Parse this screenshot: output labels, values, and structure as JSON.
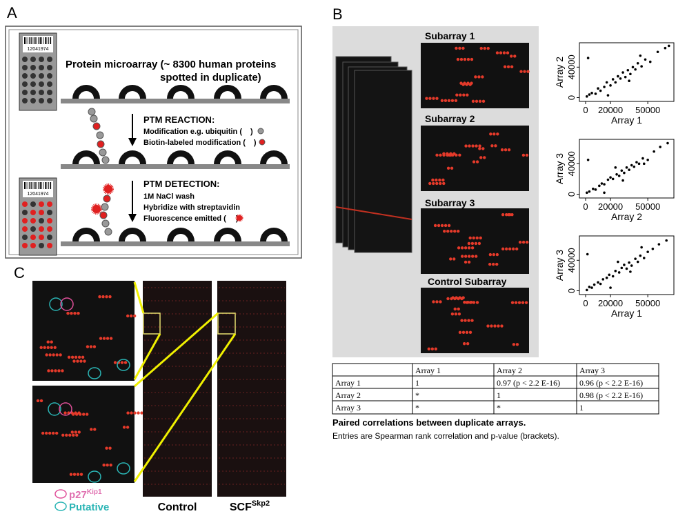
{
  "panel_labels": [
    "A",
    "B",
    "C"
  ],
  "panel_a": {
    "barcode": "12041974",
    "title_lines": [
      "Protein microarray (~ 8300 human proteins",
      "spotted in duplicate)"
    ],
    "reaction": {
      "heading": "PTM REACTION:",
      "line1_before": "Modification e.g. ubiquitin (",
      "line1_after": ")",
      "line2_before": "Biotin-labeled modification (",
      "line2_after": ")"
    },
    "detection": {
      "heading": "PTM DETECTION:",
      "line1": "1M NaCl wash",
      "line2": "Hybridize with streptavidin",
      "line3_before": "Fluorescence emitted (",
      "line3_after": ")"
    }
  },
  "panel_b": {
    "subarray_labels": [
      "Subarray 1",
      "Subarray 2",
      "Subarray 3",
      "Control Subarray"
    ],
    "table": {
      "header": [
        "Array  1",
        "Array  2",
        "Array  3"
      ],
      "rows": [
        [
          "Array  1",
          "1",
          "0.97 (p < 2.2 E-16)",
          "0.96 (p < 2.2 E-16)"
        ],
        [
          "Array  2",
          "*",
          "1",
          "0.98 (p < 2.2 E-16)"
        ],
        [
          "Array  3",
          "*",
          "*",
          "1"
        ]
      ]
    },
    "caption": {
      "title": "Paired correlations between duplicate arrays.",
      "text": "Entries are Spearman rank correlation and p-value (brackets)."
    }
  },
  "chart_data": [
    {
      "type": "scatter",
      "xlabel": "Array 1",
      "ylabel": "Array 2",
      "xlim": [
        -5000,
        71000
      ],
      "ylim": [
        -5000,
        72000
      ],
      "xticks": [
        0,
        20000,
        50000
      ],
      "yticks": [
        0,
        40000
      ],
      "color": "#000000",
      "x": [
        1000,
        3000,
        5000,
        8000,
        10000,
        12000,
        15000,
        17000,
        20000,
        22000,
        24000,
        26000,
        28000,
        30000,
        32000,
        34000,
        36000,
        38000,
        40000,
        42000,
        45000,
        48000,
        52000,
        58000,
        64000,
        67000,
        2000,
        18000,
        35000,
        44000
      ],
      "y": [
        1500,
        4000,
        6000,
        5000,
        12000,
        9000,
        14000,
        20000,
        16000,
        24000,
        20000,
        28000,
        25000,
        33000,
        27000,
        36000,
        31000,
        40000,
        37000,
        45000,
        41000,
        50000,
        47000,
        60000,
        65000,
        68000,
        52000,
        3000,
        22000,
        55000
      ]
    },
    {
      "type": "scatter",
      "xlabel": "Array 2",
      "ylabel": "Array 3",
      "xlim": [
        -5000,
        71000
      ],
      "ylim": [
        -5000,
        72000
      ],
      "xticks": [
        0,
        20000,
        50000
      ],
      "yticks": [
        0,
        40000
      ],
      "color": "#000000",
      "x": [
        1000,
        3000,
        6000,
        8000,
        11000,
        13000,
        15000,
        18000,
        20000,
        22000,
        25000,
        27000,
        29000,
        31000,
        33000,
        35000,
        37000,
        39000,
        41000,
        43000,
        46000,
        50000,
        55000,
        60000,
        66000,
        2000,
        15000,
        30000,
        47000,
        24000
      ],
      "y": [
        2000,
        3500,
        7000,
        6000,
        11000,
        14000,
        13000,
        19000,
        22000,
        20000,
        26000,
        24000,
        31000,
        28000,
        35000,
        32000,
        38000,
        36000,
        42000,
        40000,
        47000,
        45000,
        56000,
        62000,
        67000,
        45000,
        2000,
        18000,
        40000,
        35000
      ]
    },
    {
      "type": "scatter",
      "xlabel": "Array 1",
      "ylabel": "Array 3",
      "xlim": [
        -5000,
        71000
      ],
      "ylim": [
        -5000,
        72000
      ],
      "xticks": [
        0,
        20000,
        50000
      ],
      "yticks": [
        0,
        40000
      ],
      "color": "#000000",
      "x": [
        1000,
        3000,
        5000,
        7000,
        10000,
        12000,
        14000,
        17000,
        19000,
        22000,
        24000,
        27000,
        29000,
        31000,
        33000,
        35000,
        37000,
        40000,
        42000,
        44000,
        47000,
        50000,
        54000,
        59000,
        65000,
        1500,
        20000,
        36000,
        45000,
        26000
      ],
      "y": [
        1000,
        5000,
        4000,
        8000,
        11000,
        9000,
        15000,
        17000,
        21000,
        19000,
        26000,
        24000,
        30000,
        34000,
        29000,
        37000,
        33000,
        42000,
        38000,
        46000,
        43000,
        51000,
        55000,
        61000,
        66000,
        48000,
        4000,
        25000,
        57000,
        38000
      ]
    }
  ],
  "panel_c": {
    "legend": [
      {
        "name": "p27",
        "superscript": "Kip1"
      },
      {
        "name": "Putative"
      }
    ],
    "labels": [
      {
        "name": "Control"
      },
      {
        "name": "SCF",
        "superscript": "Skp2"
      }
    ]
  }
}
